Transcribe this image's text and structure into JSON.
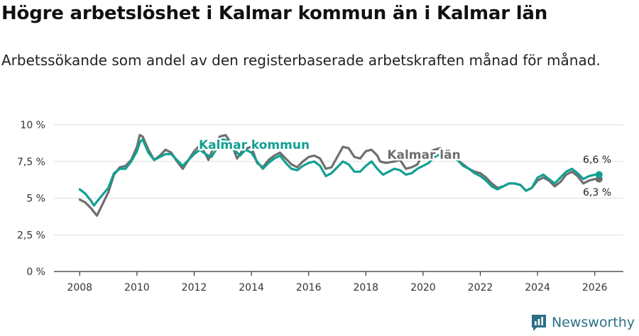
{
  "title": "Högre arbetslöshet i Kalmar kommun än i Kalmar län",
  "subtitle": "Arbetssökande som andel av den registerbaserade arbetskraften månad för månad.",
  "brand": "Newsworthy",
  "colors": {
    "kommun": "#12a092",
    "lan": "#6e6e6e",
    "grid": "#dddddd",
    "axis": "#333333",
    "brand": "#2a6f86"
  },
  "chart_data": {
    "type": "line",
    "title": "Högre arbetslöshet i Kalmar kommun än i Kalmar län",
    "subtitle": "Arbetssökande som andel av den registerbaserade arbetskraften månad för månad.",
    "xlabel": "",
    "ylabel": "",
    "xlim": [
      2007.1,
      2027.0
    ],
    "ylim": [
      0,
      10
    ],
    "x_ticks": [
      2008,
      2010,
      2012,
      2014,
      2016,
      2018,
      2020,
      2022,
      2024,
      2026
    ],
    "x_tick_labels": [
      "2008",
      "2010",
      "2012",
      "2014",
      "2016",
      "2018",
      "2020",
      "2022",
      "2024",
      "2026"
    ],
    "y_ticks": [
      0,
      2.5,
      5,
      7.5,
      10
    ],
    "y_tick_labels": [
      "0 %",
      "2,5 %",
      "5 %",
      "7,5 %",
      "10 %"
    ],
    "grid": true,
    "series": [
      {
        "name": "Kalmar län",
        "label": "Kalmar län",
        "end_label": "6,3 %",
        "points": [
          [
            2008.0,
            4.9
          ],
          [
            2008.2,
            4.7
          ],
          [
            2008.4,
            4.3
          ],
          [
            2008.6,
            3.8
          ],
          [
            2008.8,
            4.6
          ],
          [
            2009.0,
            5.4
          ],
          [
            2009.2,
            6.6
          ],
          [
            2009.4,
            7.1
          ],
          [
            2009.6,
            7.2
          ],
          [
            2009.8,
            7.6
          ],
          [
            2010.0,
            8.5
          ],
          [
            2010.1,
            9.3
          ],
          [
            2010.2,
            9.2
          ],
          [
            2010.4,
            8.3
          ],
          [
            2010.6,
            7.6
          ],
          [
            2010.8,
            7.9
          ],
          [
            2011.0,
            8.3
          ],
          [
            2011.2,
            8.1
          ],
          [
            2011.4,
            7.5
          ],
          [
            2011.6,
            7.0
          ],
          [
            2011.8,
            7.6
          ],
          [
            2012.0,
            8.2
          ],
          [
            2012.2,
            8.6
          ],
          [
            2012.4,
            8.0
          ],
          [
            2012.5,
            7.6
          ],
          [
            2012.7,
            8.6
          ],
          [
            2012.9,
            9.2
          ],
          [
            2013.1,
            9.3
          ],
          [
            2013.3,
            8.7
          ],
          [
            2013.5,
            7.7
          ],
          [
            2013.7,
            8.3
          ],
          [
            2014.0,
            8.5
          ],
          [
            2014.2,
            7.4
          ],
          [
            2014.4,
            7.1
          ],
          [
            2014.6,
            7.6
          ],
          [
            2014.8,
            7.9
          ],
          [
            2015.0,
            8.1
          ],
          [
            2015.2,
            7.7
          ],
          [
            2015.4,
            7.3
          ],
          [
            2015.6,
            7.1
          ],
          [
            2015.8,
            7.5
          ],
          [
            2016.0,
            7.8
          ],
          [
            2016.2,
            7.9
          ],
          [
            2016.4,
            7.7
          ],
          [
            2016.6,
            7.0
          ],
          [
            2016.8,
            7.1
          ],
          [
            2017.0,
            7.8
          ],
          [
            2017.2,
            8.5
          ],
          [
            2017.4,
            8.4
          ],
          [
            2017.6,
            7.8
          ],
          [
            2017.8,
            7.7
          ],
          [
            2018.0,
            8.2
          ],
          [
            2018.2,
            8.3
          ],
          [
            2018.4,
            7.9
          ],
          [
            2018.5,
            7.5
          ],
          [
            2018.7,
            7.4
          ],
          [
            2019.0,
            7.5
          ],
          [
            2019.2,
            7.6
          ],
          [
            2019.4,
            7.0
          ],
          [
            2019.6,
            7.1
          ],
          [
            2019.8,
            7.3
          ],
          [
            2020.0,
            8.0
          ],
          [
            2020.2,
            8.1
          ],
          [
            2020.4,
            8.3
          ],
          [
            2020.6,
            8.4
          ],
          [
            2020.8,
            8.2
          ],
          [
            2021.0,
            8.0
          ],
          [
            2021.2,
            7.6
          ],
          [
            2021.4,
            7.3
          ],
          [
            2021.6,
            7.0
          ],
          [
            2021.8,
            6.8
          ],
          [
            2022.0,
            6.7
          ],
          [
            2022.2,
            6.4
          ],
          [
            2022.4,
            6.0
          ],
          [
            2022.6,
            5.7
          ],
          [
            2022.8,
            5.8
          ],
          [
            2023.0,
            6.0
          ],
          [
            2023.2,
            6.0
          ],
          [
            2023.4,
            5.9
          ],
          [
            2023.6,
            5.5
          ],
          [
            2023.8,
            5.7
          ],
          [
            2024.0,
            6.2
          ],
          [
            2024.2,
            6.4
          ],
          [
            2024.4,
            6.2
          ],
          [
            2024.6,
            5.8
          ],
          [
            2024.8,
            6.1
          ],
          [
            2025.0,
            6.6
          ],
          [
            2025.2,
            6.8
          ],
          [
            2025.4,
            6.5
          ],
          [
            2025.6,
            6.0
          ],
          [
            2025.8,
            6.2
          ],
          [
            2026.0,
            6.3
          ],
          [
            2026.15,
            6.3
          ]
        ]
      },
      {
        "name": "Kalmar kommun",
        "label": "Kalmar kommun",
        "end_label": "6,6 %",
        "points": [
          [
            2008.0,
            5.6
          ],
          [
            2008.2,
            5.3
          ],
          [
            2008.4,
            4.8
          ],
          [
            2008.5,
            4.5
          ],
          [
            2008.7,
            5.0
          ],
          [
            2009.0,
            5.7
          ],
          [
            2009.2,
            6.7
          ],
          [
            2009.4,
            7.0
          ],
          [
            2009.6,
            7.0
          ],
          [
            2009.8,
            7.5
          ],
          [
            2010.0,
            8.2
          ],
          [
            2010.1,
            8.8
          ],
          [
            2010.2,
            9.0
          ],
          [
            2010.4,
            8.1
          ],
          [
            2010.6,
            7.6
          ],
          [
            2010.8,
            7.8
          ],
          [
            2011.0,
            8.0
          ],
          [
            2011.2,
            8.0
          ],
          [
            2011.4,
            7.6
          ],
          [
            2011.6,
            7.2
          ],
          [
            2011.8,
            7.6
          ],
          [
            2012.0,
            8.0
          ],
          [
            2012.2,
            8.3
          ],
          [
            2012.4,
            8.0
          ],
          [
            2012.6,
            7.8
          ],
          [
            2012.8,
            8.4
          ],
          [
            2013.0,
            9.0
          ],
          [
            2013.2,
            8.9
          ],
          [
            2013.4,
            8.3
          ],
          [
            2013.6,
            7.9
          ],
          [
            2013.8,
            8.3
          ],
          [
            2014.0,
            8.1
          ],
          [
            2014.2,
            7.5
          ],
          [
            2014.4,
            7.0
          ],
          [
            2014.6,
            7.4
          ],
          [
            2014.8,
            7.7
          ],
          [
            2015.0,
            7.9
          ],
          [
            2015.2,
            7.4
          ],
          [
            2015.4,
            7.0
          ],
          [
            2015.6,
            6.9
          ],
          [
            2015.8,
            7.2
          ],
          [
            2016.0,
            7.4
          ],
          [
            2016.2,
            7.5
          ],
          [
            2016.4,
            7.2
          ],
          [
            2016.6,
            6.5
          ],
          [
            2016.8,
            6.7
          ],
          [
            2017.0,
            7.1
          ],
          [
            2017.2,
            7.5
          ],
          [
            2017.4,
            7.3
          ],
          [
            2017.6,
            6.8
          ],
          [
            2017.8,
            6.8
          ],
          [
            2018.0,
            7.2
          ],
          [
            2018.2,
            7.5
          ],
          [
            2018.4,
            7.0
          ],
          [
            2018.6,
            6.6
          ],
          [
            2018.8,
            6.8
          ],
          [
            2019.0,
            7.0
          ],
          [
            2019.2,
            6.9
          ],
          [
            2019.4,
            6.6
          ],
          [
            2019.6,
            6.7
          ],
          [
            2019.8,
            7.0
          ],
          [
            2020.0,
            7.2
          ],
          [
            2020.2,
            7.4
          ],
          [
            2020.4,
            7.8
          ],
          [
            2020.6,
            8.0
          ],
          [
            2020.8,
            7.9
          ],
          [
            2021.0,
            7.8
          ],
          [
            2021.2,
            7.6
          ],
          [
            2021.4,
            7.2
          ],
          [
            2021.6,
            7.0
          ],
          [
            2021.8,
            6.7
          ],
          [
            2022.0,
            6.5
          ],
          [
            2022.2,
            6.2
          ],
          [
            2022.4,
            5.8
          ],
          [
            2022.6,
            5.6
          ],
          [
            2022.8,
            5.8
          ],
          [
            2023.0,
            6.0
          ],
          [
            2023.2,
            6.0
          ],
          [
            2023.4,
            5.9
          ],
          [
            2023.6,
            5.5
          ],
          [
            2023.8,
            5.7
          ],
          [
            2024.0,
            6.4
          ],
          [
            2024.2,
            6.6
          ],
          [
            2024.4,
            6.3
          ],
          [
            2024.6,
            6.0
          ],
          [
            2024.8,
            6.4
          ],
          [
            2025.0,
            6.8
          ],
          [
            2025.2,
            7.0
          ],
          [
            2025.4,
            6.7
          ],
          [
            2025.6,
            6.3
          ],
          [
            2025.8,
            6.5
          ],
          [
            2026.0,
            6.6
          ],
          [
            2026.15,
            6.6
          ]
        ]
      }
    ]
  }
}
